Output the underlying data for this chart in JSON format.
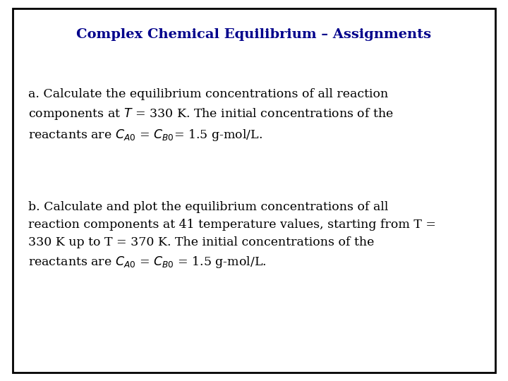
{
  "title": "Complex Chemical Equilibrium – Assignments",
  "title_color": "#00008B",
  "title_fontsize": 14,
  "bg_color": "#ffffff",
  "border_color": "#000000",
  "text_color": "#000000",
  "body_fontsize": 12.5,
  "paragraph_a_lines": [
    "a. Calculate the equilibrium concentrations of all reaction",
    "components at $\\itT$ = 330 K. The initial concentrations of the",
    "reactants are $C_{A0}$ = $C_{B0}$= 1.5 g-mol/L."
  ],
  "paragraph_b_lines": [
    "b. Calculate and plot the equilibrium concentrations of all",
    "reaction components at 41 temperature values, starting from T =",
    "330 K up to T = 370 K. The initial concentrations of the",
    "reactants are $C_{A0}$ = $C_{B0}$ = 1.5 g-mol/L."
  ]
}
